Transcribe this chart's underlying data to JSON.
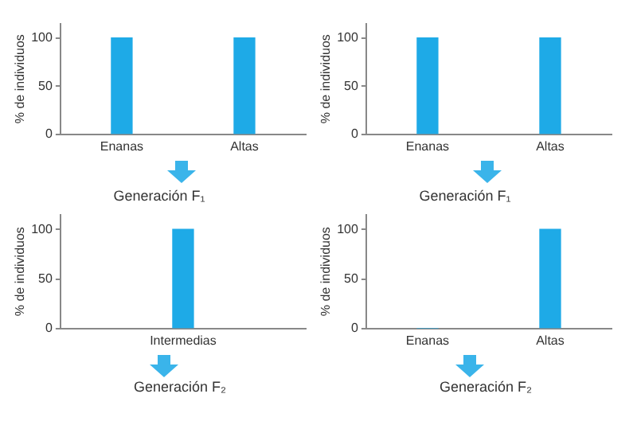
{
  "chart_data": [
    {
      "type": "bar",
      "categories": [
        "Enanas",
        "Altas"
      ],
      "values": [
        100,
        100
      ],
      "color": "#1eaae7",
      "ylabel": "% de individuos",
      "ylim": [
        0,
        115
      ],
      "yticks": [
        0,
        50,
        100
      ]
    },
    {
      "type": "bar",
      "categories": [
        "Enanas",
        "Altas"
      ],
      "values": [
        100,
        100
      ],
      "color": "#1eaae7",
      "ylabel": "% de individuos",
      "ylim": [
        0,
        115
      ],
      "yticks": [
        0,
        50,
        100
      ]
    },
    {
      "type": "bar",
      "title": "Generación F₁",
      "categories": [
        "Intermedias"
      ],
      "values": [
        100
      ],
      "color": "#1eaae7",
      "ylabel": "% de individuos",
      "ylim": [
        0,
        115
      ],
      "yticks": [
        0,
        50,
        100
      ],
      "annotations": [
        "Generación F₂"
      ]
    },
    {
      "type": "bar",
      "title": "Generación F₁",
      "categories": [
        "Enanas",
        "Altas"
      ],
      "values": [
        0,
        100
      ],
      "color": "#1eaae7",
      "ylabel": "% de individuos",
      "ylim": [
        0,
        115
      ],
      "yticks": [
        0,
        50,
        100
      ],
      "annotations": [
        "Generación F₂"
      ]
    }
  ]
}
